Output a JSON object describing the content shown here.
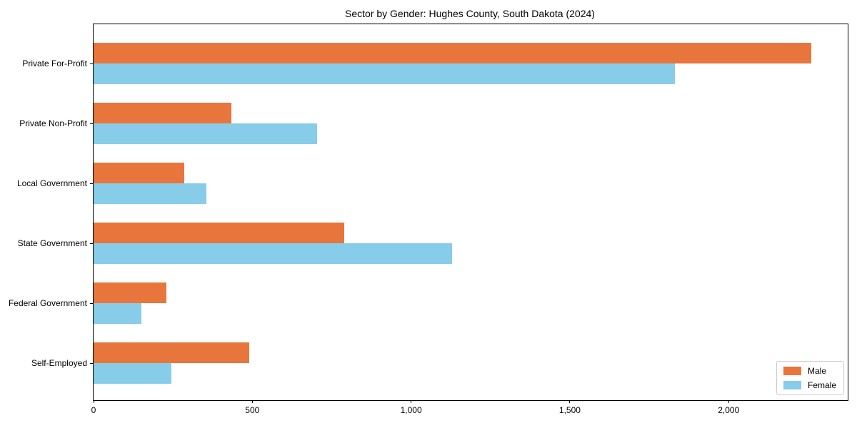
{
  "chart_data": {
    "type": "bar",
    "orientation": "horizontal",
    "title": "Sector by Gender: Hughes County, South Dakota (2024)",
    "categories": [
      "Private For-Profit",
      "Private Non-Profit",
      "Local Government",
      "State Government",
      "Federal Government",
      "Self-Employed"
    ],
    "series": [
      {
        "name": "Male",
        "color": "#e8763c",
        "values": [
          2260,
          435,
          285,
          790,
          230,
          490
        ]
      },
      {
        "name": "Female",
        "color": "#87cde9",
        "values": [
          1830,
          705,
          355,
          1130,
          150,
          245
        ]
      }
    ],
    "xlabel": "",
    "ylabel": "",
    "xlim": [
      0,
      2375
    ],
    "x_ticks": [
      0,
      500,
      1000,
      1500,
      2000
    ],
    "x_tick_labels": [
      "0",
      "500",
      "1,000",
      "1,500",
      "2,000"
    ],
    "grid": false,
    "legend": {
      "position": "lower right",
      "entries": [
        "Male",
        "Female"
      ]
    }
  }
}
